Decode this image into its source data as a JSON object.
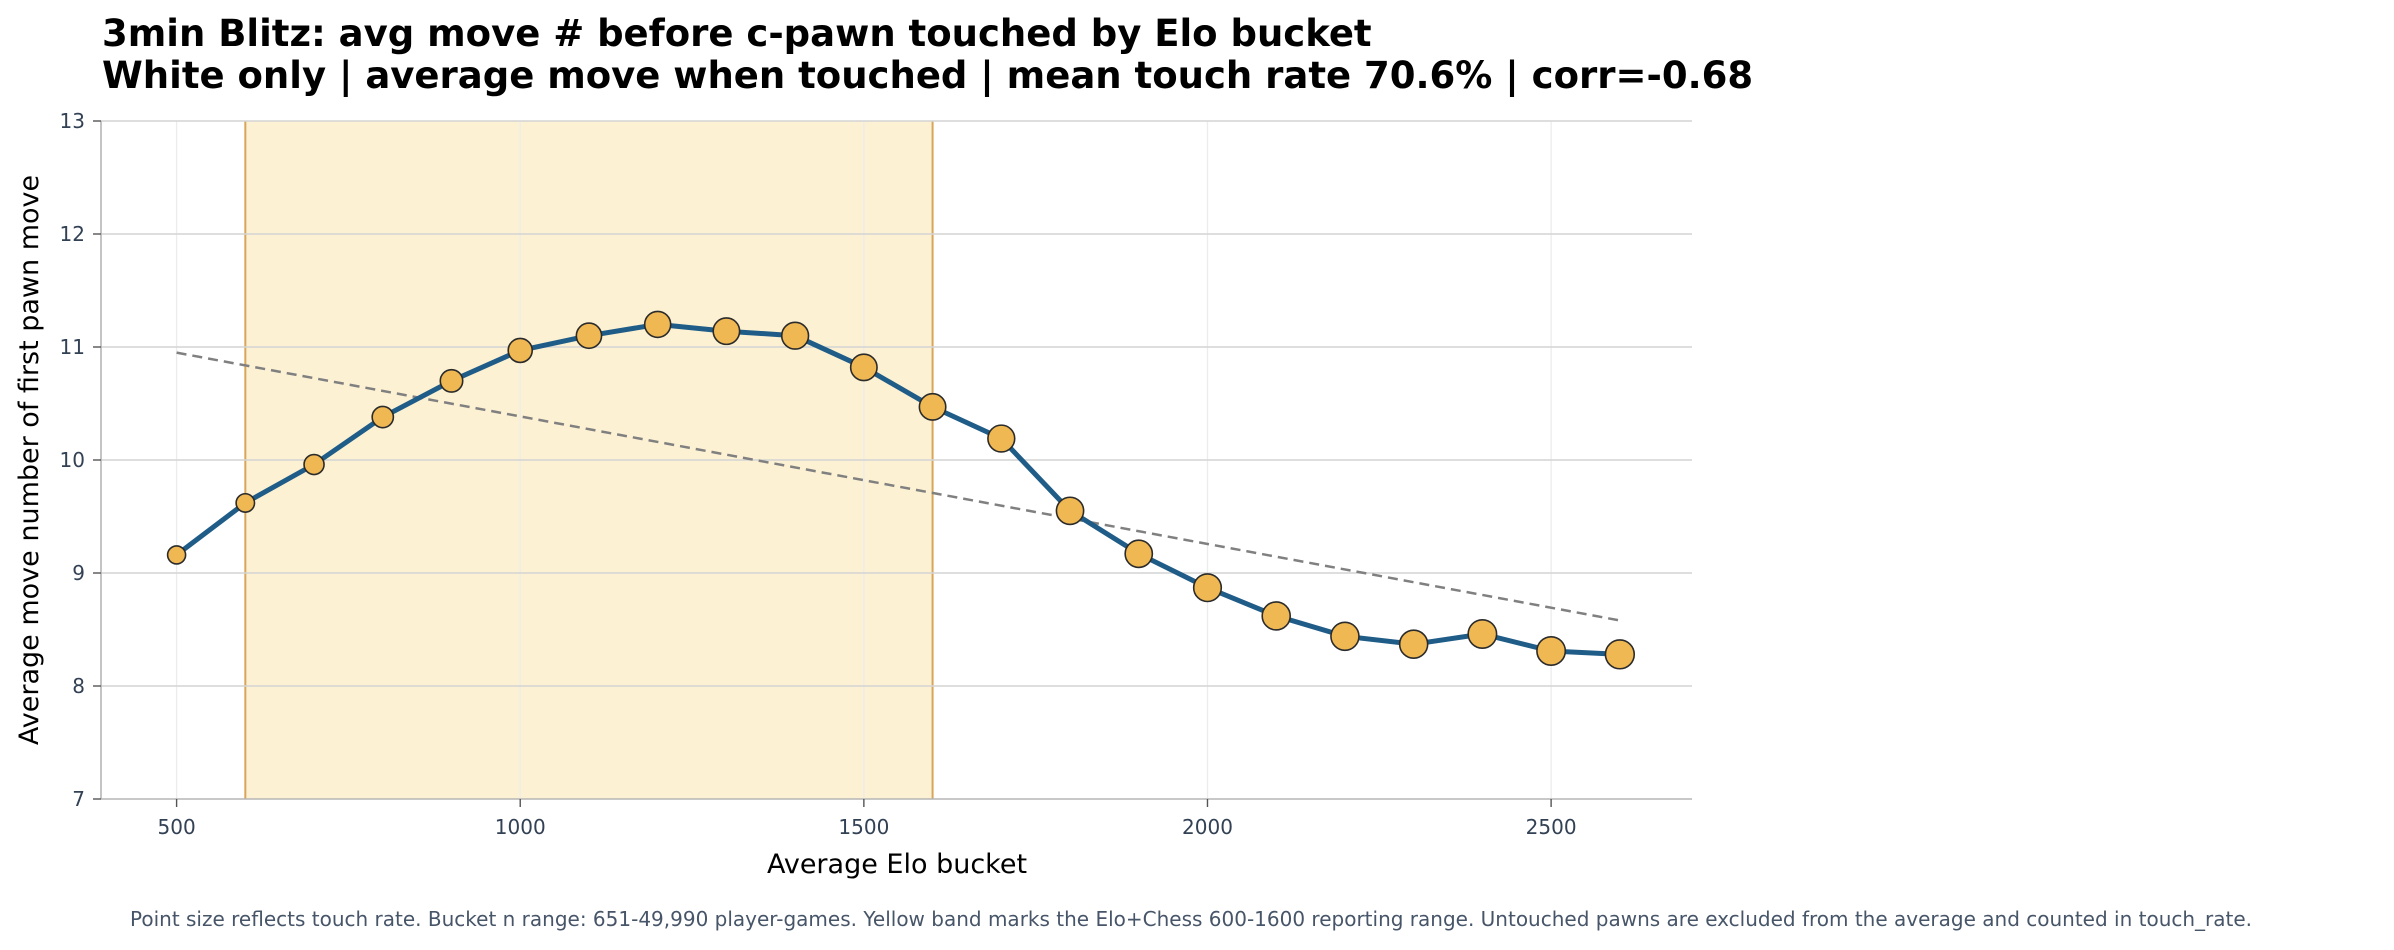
{
  "chart_data": {
    "type": "line",
    "title": "3min Blitz: avg move # before c-pawn touched by Elo bucket",
    "subtitle": "White only | average move when touched | mean touch rate 70.6% | corr=-0.68",
    "xlabel": "Average Elo bucket",
    "ylabel": "Average move number of first pawn move",
    "xlim": [
      390,
      2705
    ],
    "ylim": [
      7,
      13
    ],
    "xticks": [
      500,
      1000,
      1500,
      2000,
      2500
    ],
    "yticks": [
      7,
      8,
      9,
      10,
      11,
      12,
      13
    ],
    "grid": true,
    "highlight_band": [
      600,
      1600
    ],
    "series": [
      {
        "x": [
          500,
          600,
          700,
          800,
          900,
          1000,
          1100,
          1200,
          1300,
          1400,
          1500,
          1600,
          1700,
          1800,
          1900,
          2000,
          2100,
          2200,
          2300,
          2400,
          2500,
          2600
        ],
        "values": [
          9.16,
          9.62,
          9.96,
          10.38,
          10.7,
          10.97,
          11.1,
          11.2,
          11.14,
          11.1,
          10.82,
          10.47,
          10.19,
          9.55,
          9.17,
          8.87,
          8.62,
          8.44,
          8.37,
          8.46,
          8.31,
          8.28
        ],
        "point_size": [
          0.55,
          0.56,
          0.6,
          0.63,
          0.66,
          0.7,
          0.73,
          0.75,
          0.76,
          0.77,
          0.76,
          0.76,
          0.77,
          0.78,
          0.78,
          0.79,
          0.8,
          0.8,
          0.8,
          0.81,
          0.81,
          0.82
        ]
      },
      {
        "x": [
          500,
          2600
        ],
        "values": [
          10.95,
          8.58
        ]
      }
    ],
    "colors": {
      "line": "#1f5c87",
      "marker_fill": "#f0b852",
      "marker_edge": "#2b2b2b",
      "trend": "#808080",
      "band_fill": "#fcf1d3",
      "band_edge": "#d9a55a",
      "grid_major": "#d4d4d4",
      "grid_minor": "#ececec"
    },
    "footnote": "Point size reflects touch rate. Bucket n range: 651-49,990 player-games. Yellow band marks the Elo+Chess 600-1600 reporting range. Untouched pawns are excluded from the average and counted in touch_rate."
  }
}
